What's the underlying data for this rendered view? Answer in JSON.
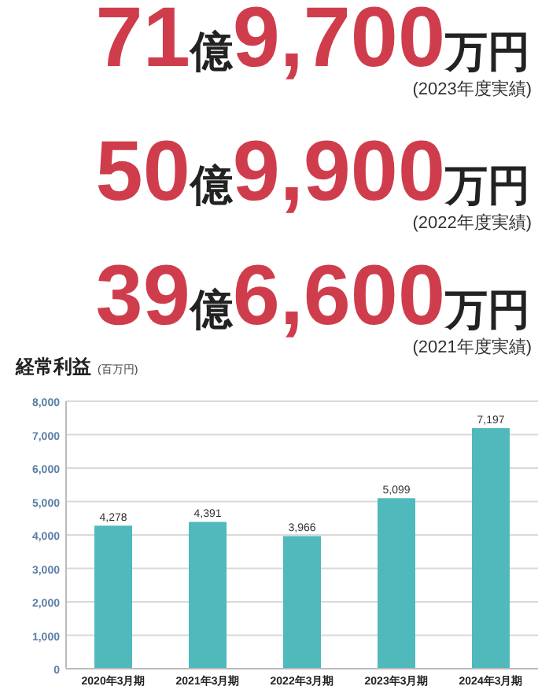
{
  "chart_data": [
    {
      "type": "other",
      "annotations": [
        "71億9,700万円",
        "(2023年度実績)",
        "50億9,900万円",
        "(2022年度実績)",
        "39億6,600万円",
        "(2021年度実績)"
      ]
    },
    {
      "type": "bar",
      "title": "経常利益",
      "ylabel": "(百万円)",
      "categories": [
        "2020年3月期",
        "2021年3月期",
        "2022年3月期",
        "2023年3月期",
        "2024年3月期"
      ],
      "values": [
        4278,
        4391,
        3966,
        5099,
        7197
      ],
      "color": "#4fb9bc",
      "value_labels": [
        "4,278",
        "4,391",
        "3,966",
        "5,099",
        "7,197"
      ],
      "grid": "y",
      "ylim": [
        0,
        8000
      ],
      "yticks": [
        0,
        {
          "value": 1000,
          "label": "1,000"
        },
        {
          "value": 2000,
          "label": "2,000"
        },
        {
          "value": 3000,
          "label": "3,000"
        },
        {
          "value": 4000,
          "label": "4,000"
        },
        {
          "value": 5000,
          "label": "5,000"
        },
        {
          "value": 6000,
          "label": "6,000"
        },
        {
          "value": 7000,
          "label": "7,000"
        },
        {
          "value": 8000,
          "label": "8,000"
        }
      ]
    }
  ]
}
